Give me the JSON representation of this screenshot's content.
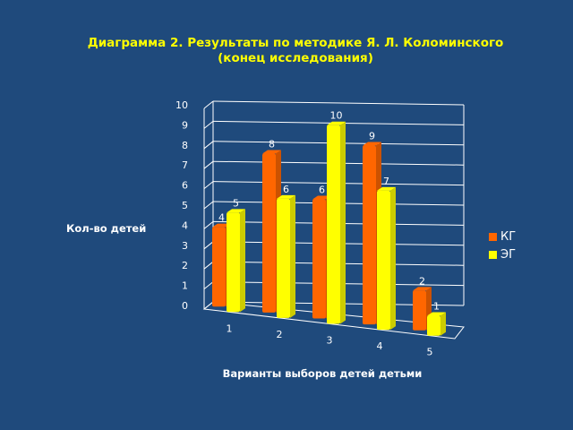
{
  "chart_data": {
    "type": "bar",
    "title": "Диаграмма 2. Результаты по методике Я. Л. Коломинского",
    "subtitle": "(конец исследования)",
    "xlabel": "Варианты выборов детей детьми",
    "ylabel": "Кол-во детей",
    "categories": [
      "1",
      "2",
      "3",
      "4",
      "5"
    ],
    "series": [
      {
        "name": "КГ",
        "values": [
          4,
          8,
          6,
          9,
          2
        ],
        "color": "#ff6600"
      },
      {
        "name": "ЭГ",
        "values": [
          5,
          6,
          10,
          7,
          1
        ],
        "color": "#ffff00"
      }
    ],
    "ylim": [
      0,
      10
    ],
    "yticks": [
      "0",
      "1",
      "2",
      "3",
      "4",
      "5",
      "6",
      "7",
      "8",
      "9",
      "10"
    ],
    "grid": true,
    "legend_position": "right"
  },
  "colors": {
    "background": "#1f4a7c",
    "title": "#ffff00",
    "text": "#ffffff"
  }
}
